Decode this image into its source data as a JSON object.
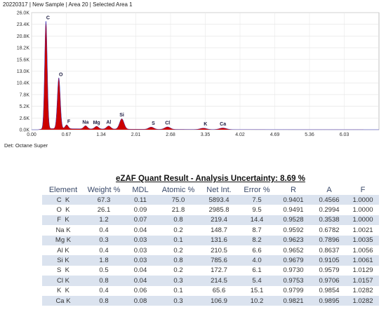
{
  "header": {
    "title": "20220317 | New Sample | Area 20 | Selected Area 1"
  },
  "detector": {
    "label": "Det: Octane Super"
  },
  "chart_data": {
    "type": "line",
    "title": "",
    "xlabel": "",
    "ylabel": "",
    "xlim": [
      0.0,
      6.7
    ],
    "ylim": [
      0,
      26000
    ],
    "x_ticks": [
      "0.00",
      "0.67",
      "1.34",
      "2.01",
      "2.68",
      "3.35",
      "4.02",
      "4.69",
      "5.36",
      "6.03"
    ],
    "x_tick_values": [
      0.0,
      0.67,
      1.34,
      2.01,
      2.68,
      3.35,
      4.02,
      4.69,
      5.36,
      6.03
    ],
    "y_ticks": [
      "0.0K",
      "2.6K",
      "5.2K",
      "7.8K",
      "10.4K",
      "13.0K",
      "15.6K",
      "18.2K",
      "20.8K",
      "23.4K",
      "26.0K"
    ],
    "y_tick_values": [
      0,
      2600,
      5200,
      7800,
      10400,
      13000,
      15600,
      18200,
      20800,
      23400,
      26000
    ],
    "fill_color": "#cc0000",
    "outline_color": "#3030c0",
    "peaks": [
      {
        "label": "C",
        "energy": 0.277,
        "counts": 23900
      },
      {
        "label": "O",
        "energy": 0.525,
        "counts": 11300
      },
      {
        "label": "F",
        "energy": 0.677,
        "counts": 850
      },
      {
        "label": "Na",
        "energy": 1.041,
        "counts": 700
      },
      {
        "label": "Mg",
        "energy": 1.254,
        "counts": 600
      },
      {
        "label": "Al",
        "energy": 1.487,
        "counts": 700
      },
      {
        "label": "Si",
        "energy": 1.74,
        "counts": 2300
      },
      {
        "label": "S",
        "energy": 2.307,
        "counts": 500
      },
      {
        "label": "Cl",
        "energy": 2.622,
        "counts": 550
      },
      {
        "label": "K",
        "energy": 3.313,
        "counts": 300
      },
      {
        "label": "Ca",
        "energy": 3.69,
        "counts": 350
      }
    ]
  },
  "table": {
    "title": "eZAF Quant Result - Analysis Uncertainty: 8.69 %",
    "columns": [
      "Element",
      "Weight %",
      "MDL",
      "Atomic %",
      "Net Int.",
      "Error %",
      "R",
      "A",
      "F"
    ],
    "rows": [
      [
        "C  K",
        "67.3",
        "0.11",
        "75.0",
        "5893.4",
        "7.5",
        "0.9401",
        "0.4566",
        "1.0000"
      ],
      [
        "O  K",
        "26.1",
        "0.09",
        "21.8",
        "2985.8",
        "9.5",
        "0.9491",
        "0.2994",
        "1.0000"
      ],
      [
        "F  K",
        "1.2",
        "0.07",
        "0.8",
        "219.4",
        "14.4",
        "0.9528",
        "0.3538",
        "1.0000"
      ],
      [
        "Na K",
        "0.4",
        "0.04",
        "0.2",
        "148.7",
        "8.7",
        "0.9592",
        "0.6782",
        "1.0021"
      ],
      [
        "Mg K",
        "0.3",
        "0.03",
        "0.1",
        "131.6",
        "8.2",
        "0.9623",
        "0.7896",
        "1.0035"
      ],
      [
        "Al K",
        "0.4",
        "0.03",
        "0.2",
        "210.5",
        "6.6",
        "0.9652",
        "0.8637",
        "1.0056"
      ],
      [
        "Si K",
        "1.8",
        "0.03",
        "0.8",
        "785.6",
        "4.0",
        "0.9679",
        "0.9105",
        "1.0061"
      ],
      [
        "S  K",
        "0.5",
        "0.04",
        "0.2",
        "172.7",
        "6.1",
        "0.9730",
        "0.9579",
        "1.0129"
      ],
      [
        "Cl K",
        "0.8",
        "0.04",
        "0.3",
        "214.5",
        "5.4",
        "0.9753",
        "0.9706",
        "1.0157"
      ],
      [
        "K  K",
        "0.4",
        "0.06",
        "0.1",
        "65.6",
        "15.1",
        "0.9799",
        "0.9854",
        "1.0282"
      ],
      [
        "Ca K",
        "0.8",
        "0.08",
        "0.3",
        "106.9",
        "10.2",
        "0.9821",
        "0.9895",
        "1.0282"
      ]
    ]
  }
}
